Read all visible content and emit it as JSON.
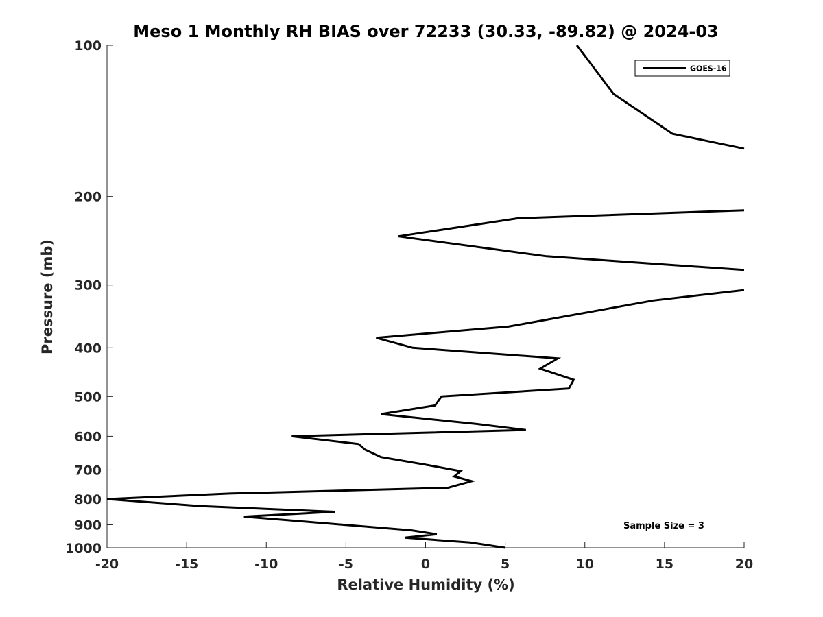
{
  "chart_data": {
    "type": "line",
    "title": "Meso 1 Monthly RH BIAS over 72233 (30.33, -89.82) @ 2024-03",
    "xlabel": "Relative Humidity (%)",
    "ylabel": "Pressure (mb)",
    "xlim": [
      -20,
      20
    ],
    "ylim": [
      100,
      1000
    ],
    "yscale": "log",
    "yreversed": true,
    "xticks": [
      -20,
      -15,
      -10,
      -5,
      0,
      5,
      10,
      15,
      20
    ],
    "yticks": [
      100,
      200,
      300,
      400,
      500,
      600,
      700,
      800,
      900,
      1000
    ],
    "grid": false,
    "legend_position": "top-right",
    "annotation": "Sample Size = 3",
    "series": [
      {
        "name": "GOES-16",
        "color": "#000000",
        "points": [
          [
            9.5,
            100
          ],
          [
            11.8,
            125
          ],
          [
            15.5,
            150
          ],
          [
            20.0,
            160.6
          ],
          [
            null,
            160.6
          ],
          [
            20.0,
            213
          ],
          [
            5.8,
            221
          ],
          [
            -1.7,
            240
          ],
          [
            7.6,
            263
          ],
          [
            20.0,
            280
          ],
          [
            null,
            280
          ],
          [
            20.0,
            307
          ],
          [
            14.3,
            322
          ],
          [
            5.2,
            363
          ],
          [
            -3.1,
            382
          ],
          [
            -0.8,
            400
          ],
          [
            8.3,
            420
          ],
          [
            7.2,
            440
          ],
          [
            9.3,
            463
          ],
          [
            9.0,
            482
          ],
          [
            1.0,
            500
          ],
          [
            0.6,
            521
          ],
          [
            -2.8,
            542
          ],
          [
            3.2,
            567
          ],
          [
            6.3,
            583
          ],
          [
            -8.4,
            600
          ],
          [
            -4.2,
            622
          ],
          [
            -3.8,
            638
          ],
          [
            -2.8,
            660
          ],
          [
            0.2,
            685
          ],
          [
            2.2,
            704
          ],
          [
            1.8,
            721
          ],
          [
            2.9,
            737
          ],
          [
            1.4,
            760
          ],
          [
            -12.3,
            780
          ],
          [
            -20.0,
            800
          ],
          [
            -14.2,
            826
          ],
          [
            -5.7,
            848
          ],
          [
            -11.4,
            867
          ],
          [
            -0.9,
            923
          ],
          [
            0.7,
            940
          ],
          [
            -1.3,
            955
          ],
          [
            2.8,
            976
          ],
          [
            5.0,
            1000
          ]
        ]
      }
    ]
  }
}
